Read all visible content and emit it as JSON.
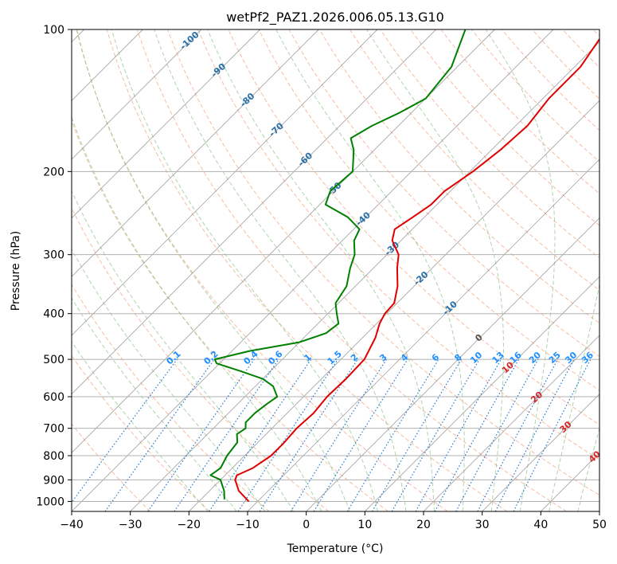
{
  "chart_data": {
    "type": "line",
    "chart_kind": "skew-T log-P sounding",
    "title": "wetPf2_PAZ1.2026.006.05.13.G10",
    "xlabel": "Temperature (°C)",
    "ylabel": "Pressure (hPa)",
    "xlim": [
      -40,
      50
    ],
    "ylim": [
      1050,
      100
    ],
    "x_ticks": [
      -40,
      -30,
      -20,
      -10,
      0,
      10,
      20,
      30,
      40,
      50
    ],
    "x_tick_labels": [
      "−40",
      "−30",
      "−20",
      "−10",
      "0",
      "10",
      "20",
      "30",
      "40",
      "50"
    ],
    "y_ticks": [
      1000,
      900,
      800,
      700,
      600,
      500,
      400,
      300,
      200,
      100
    ],
    "y_tick_labels": [
      "1000",
      "900",
      "800",
      "700",
      "600",
      "500",
      "400",
      "300",
      "200",
      "100"
    ],
    "grid": true,
    "colors": {
      "temperature": "#e00000",
      "dewpoint": "#008000",
      "dry_adiabat": "#f4a582",
      "moist_adiabat": "#7fbf7b",
      "mixing_ratio": "#1f78d4",
      "isotherm": "#909090",
      "isotherm_label_cold": "#2a6fa8",
      "isotherm_label_warm": "#d62728",
      "mixing_label": "#1e90ff"
    },
    "series": [
      {
        "name": "Temperature",
        "color": "#e00000",
        "points": [
          [
            1000,
            -11.5
          ],
          [
            950,
            -15.0
          ],
          [
            900,
            -17.5
          ],
          [
            880,
            -18.0
          ],
          [
            850,
            -16.5
          ],
          [
            800,
            -15.5
          ],
          [
            750,
            -15.5
          ],
          [
            700,
            -15.8
          ],
          [
            650,
            -15.5
          ],
          [
            600,
            -16.0
          ],
          [
            550,
            -15.8
          ],
          [
            500,
            -16.0
          ],
          [
            450,
            -17.8
          ],
          [
            420,
            -19.5
          ],
          [
            400,
            -20.3
          ],
          [
            380,
            -20.5
          ],
          [
            350,
            -22.8
          ],
          [
            320,
            -26.0
          ],
          [
            300,
            -28.0
          ],
          [
            280,
            -31.5
          ],
          [
            265,
            -33.0
          ],
          [
            250,
            -32.0
          ],
          [
            235,
            -31.0
          ],
          [
            220,
            -31.0
          ],
          [
            200,
            -29.5
          ],
          [
            180,
            -28.5
          ],
          [
            160,
            -28.0
          ],
          [
            140,
            -29.0
          ],
          [
            120,
            -29.0
          ],
          [
            100,
            -31.0
          ]
        ]
      },
      {
        "name": "Dewpoint",
        "color": "#008000",
        "points": [
          [
            990,
            -16.0
          ],
          [
            950,
            -17.5
          ],
          [
            900,
            -20.0
          ],
          [
            880,
            -22.5
          ],
          [
            850,
            -22.0
          ],
          [
            800,
            -23.0
          ],
          [
            750,
            -23.5
          ],
          [
            720,
            -25.0
          ],
          [
            700,
            -24.5
          ],
          [
            680,
            -25.5
          ],
          [
            650,
            -25.5
          ],
          [
            620,
            -25.0
          ],
          [
            600,
            -24.5
          ],
          [
            570,
            -27.0
          ],
          [
            550,
            -30.0
          ],
          [
            530,
            -35.0
          ],
          [
            510,
            -40.5
          ],
          [
            500,
            -41.5
          ],
          [
            480,
            -37.0
          ],
          [
            460,
            -30.0
          ],
          [
            440,
            -27.0
          ],
          [
            420,
            -26.5
          ],
          [
            400,
            -28.5
          ],
          [
            380,
            -30.5
          ],
          [
            350,
            -31.5
          ],
          [
            320,
            -34.0
          ],
          [
            300,
            -35.5
          ],
          [
            280,
            -38.0
          ],
          [
            265,
            -39.0
          ],
          [
            250,
            -43.0
          ],
          [
            235,
            -49.0
          ],
          [
            220,
            -50.5
          ],
          [
            200,
            -50.0
          ],
          [
            180,
            -53.5
          ],
          [
            170,
            -56.0
          ],
          [
            160,
            -54.5
          ],
          [
            150,
            -52.0
          ],
          [
            140,
            -50.0
          ],
          [
            120,
            -51.0
          ],
          [
            100,
            -55.0
          ]
        ]
      }
    ],
    "isotherm_labels": [
      "-100",
      "-90",
      "-80",
      "-70",
      "-60",
      "-50",
      "-40",
      "-30",
      "-20",
      "-10",
      "0",
      "10",
      "20",
      "30",
      "40"
    ],
    "mixing_ratio_labels": [
      "0.1",
      "0.2",
      "0.4",
      "0.6",
      "1",
      "1.5",
      "2",
      "3",
      "4",
      "6",
      "8",
      "10",
      "13",
      "16",
      "20",
      "25",
      "30",
      "36"
    ]
  }
}
